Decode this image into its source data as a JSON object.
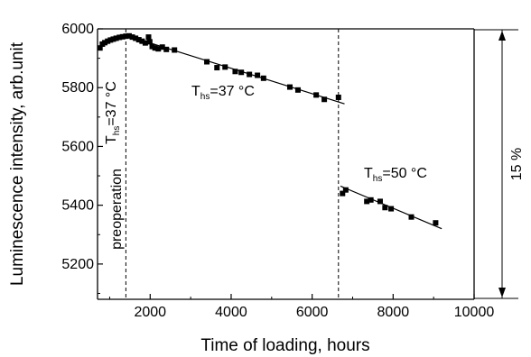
{
  "chart_data": {
    "type": "scatter",
    "title": "",
    "xlabel": "Time of loading, hours",
    "ylabel": "Luminescence intensity, arb.unit",
    "xlim": [
      700,
      10000
    ],
    "ylim": [
      5080,
      6000
    ],
    "xticks": [
      2000,
      4000,
      6000,
      8000,
      10000
    ],
    "yticks": [
      5200,
      5400,
      5600,
      5800,
      6000
    ],
    "grid": false,
    "legend": "none",
    "marker_color": "#000000",
    "series": [
      {
        "points": [
          [
            760,
            5935
          ],
          [
            820,
            5948
          ],
          [
            880,
            5953
          ],
          [
            950,
            5958
          ],
          [
            1020,
            5962
          ],
          [
            1090,
            5965
          ],
          [
            1160,
            5968
          ],
          [
            1240,
            5971
          ],
          [
            1320,
            5973
          ],
          [
            1400,
            5975
          ],
          [
            1480,
            5976
          ],
          [
            1560,
            5972
          ],
          [
            1640,
            5968
          ],
          [
            1720,
            5963
          ],
          [
            1800,
            5958
          ],
          [
            1880,
            5952
          ],
          [
            1960,
            5972
          ],
          [
            1990,
            5956
          ],
          [
            2050,
            5940
          ],
          [
            2120,
            5935
          ],
          [
            2200,
            5932
          ],
          [
            2300,
            5938
          ],
          [
            2400,
            5930
          ],
          [
            2600,
            5928
          ],
          [
            3400,
            5888
          ],
          [
            3650,
            5868
          ],
          [
            3850,
            5870
          ],
          [
            4100,
            5855
          ],
          [
            4250,
            5852
          ],
          [
            4450,
            5845
          ],
          [
            4650,
            5842
          ],
          [
            4800,
            5832
          ],
          [
            5450,
            5802
          ],
          [
            5650,
            5792
          ],
          [
            6100,
            5775
          ],
          [
            6300,
            5760
          ],
          [
            6650,
            5767
          ],
          [
            6750,
            5440
          ],
          [
            6830,
            5452
          ],
          [
            7350,
            5413
          ],
          [
            7450,
            5418
          ],
          [
            7680,
            5413
          ],
          [
            7800,
            5392
          ],
          [
            7950,
            5388
          ],
          [
            8450,
            5360
          ],
          [
            9050,
            5340
          ]
        ]
      }
    ],
    "fit_lines": [
      {
        "x": [
          1700,
          6800
        ],
        "y": [
          5965,
          5745
        ]
      },
      {
        "x": [
          6700,
          9200
        ],
        "y": [
          5465,
          5320
        ]
      }
    ],
    "vertical_markers": [
      1400,
      6650
    ],
    "annotations": {
      "preop_label": "preoperation",
      "t37_left": {
        "main": "T",
        "sub": "hs",
        "value": "=37 °C"
      },
      "t37_mid": {
        "main": "T",
        "sub": "hs",
        "value": "=37 °C"
      },
      "t50": {
        "main": "T",
        "sub": "hs",
        "value": "=50 °C"
      },
      "percent": "15 %"
    }
  }
}
